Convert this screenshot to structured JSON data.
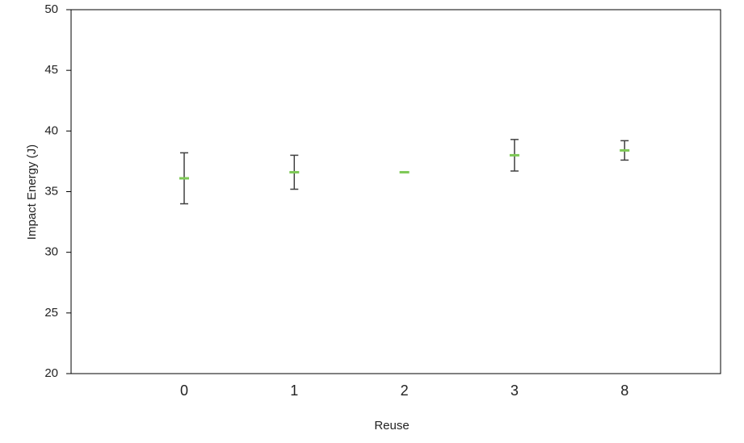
{
  "chart_data": {
    "type": "errorbar",
    "x_label": "Reuse",
    "y_label": "Impact Energy (J)",
    "categories": [
      "0",
      "1",
      "2",
      "3",
      "8"
    ],
    "values": [
      36.1,
      36.6,
      36.6,
      38.0,
      38.4
    ],
    "errors": [
      2.1,
      1.4,
      0,
      1.3,
      0.8
    ],
    "color": "#7dc855",
    "error_color": "#404040",
    "ylim": [
      20,
      50
    ],
    "yticks": [
      20,
      25,
      30,
      35,
      40,
      45,
      50
    ],
    "grid": false
  }
}
